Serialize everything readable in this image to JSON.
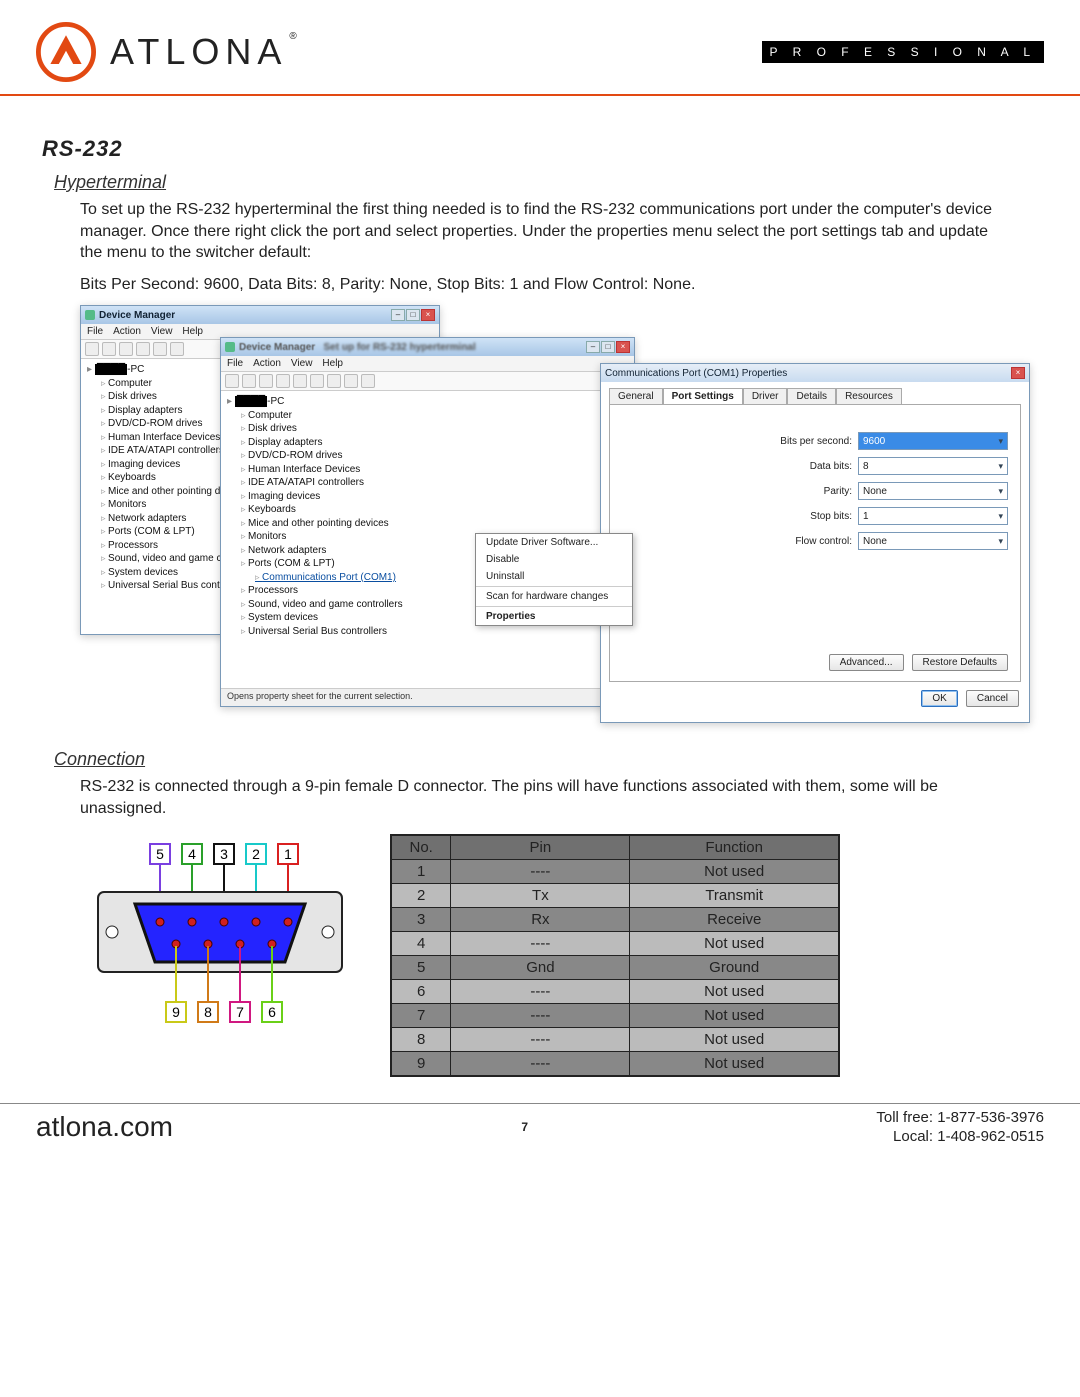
{
  "header": {
    "brand": "ATLONA",
    "badge": "P R O F E S S I O N A L",
    "logo_color": "#e24912"
  },
  "section_title": "RS-232",
  "hyperterminal": {
    "heading": "Hyperterminal",
    "para1": "To set up the RS-232 hyperterminal the first thing needed is to find the RS-232 communications port under the computer's device manager. Once there right click the port and select properties. Under the properties menu select the port settings tab and update the menu to the switcher default:",
    "para2": "Bits Per Second: 9600, Data Bits: 8, Parity: None, Stop Bits: 1 and Flow Control: None."
  },
  "device_manager": {
    "title": "Device Manager",
    "menus": [
      "File",
      "Action",
      "View",
      "Help"
    ],
    "root_suffix": "-PC",
    "tree1": [
      "Computer",
      "Disk drives",
      "Display adapters",
      "DVD/CD-ROM drives",
      "Human Interface Devices",
      "IDE ATA/ATAPI controllers",
      "Imaging devices",
      "Keyboards",
      "Mice and other pointing devices",
      "Monitors",
      "Network adapters",
      "Ports (COM & LPT)",
      "Processors",
      "Sound, video and game controllers",
      "System devices",
      "Universal Serial Bus controllers"
    ],
    "tree2_extra": "Communications Port (COM1)",
    "dm2_title_blur": "Set up for RS-232 hyperterminal",
    "status2": "Opens property sheet for the current selection."
  },
  "context_menu": [
    "Update Driver Software...",
    "Disable",
    "Uninstall",
    "Scan for hardware changes",
    "Properties"
  ],
  "properties": {
    "title": "Communications Port (COM1) Properties",
    "tabs": [
      "General",
      "Port Settings",
      "Driver",
      "Details",
      "Resources"
    ],
    "active_tab": 1,
    "fields": {
      "Bits per second:": "9600",
      "Data bits:": "8",
      "Parity:": "None",
      "Stop bits:": "1",
      "Flow control:": "None"
    },
    "advanced": "Advanced...",
    "restore": "Restore Defaults",
    "ok": "OK",
    "cancel": "Cancel"
  },
  "connection": {
    "heading": "Connection",
    "para": "RS-232 is connected through a 9-pin female D connector. The pins will have functions associated with them, some will be unassigned."
  },
  "pins": {
    "headers": [
      "No.",
      "Pin",
      "Function"
    ],
    "rows": [
      [
        "1",
        "----",
        "Not used"
      ],
      [
        "2",
        "Tx",
        "Transmit"
      ],
      [
        "3",
        "Rx",
        "Receive"
      ],
      [
        "4",
        "----",
        "Not used"
      ],
      [
        "5",
        "Gnd",
        "Ground"
      ],
      [
        "6",
        "----",
        "Not used"
      ],
      [
        "7",
        "----",
        "Not used"
      ],
      [
        "8",
        "----",
        "Not used"
      ],
      [
        "9",
        "----",
        "Not used"
      ]
    ],
    "col_widths": [
      "60px",
      "180px",
      "210px"
    ]
  },
  "connector_diagram": {
    "top_labels": [
      "5",
      "4",
      "3",
      "2",
      "1"
    ],
    "bottom_labels": [
      "9",
      "8",
      "7",
      "6"
    ],
    "label_border_colors_top": [
      "#7a3fe0",
      "#2aa02a",
      "#111",
      "#18c9c9",
      "#d92020"
    ],
    "label_border_colors_bottom": [
      "#c9c918",
      "#d07a18",
      "#d01880",
      "#6ad018"
    ],
    "body_fill": "#2424ff",
    "plate_fill": "#e5e5e5",
    "pin_fill": "#d02020"
  },
  "footer": {
    "site": "atlona.com",
    "page": "7",
    "toll": "Toll free: 1-877-536-3976",
    "local": "Local: 1-408-962-0515"
  }
}
